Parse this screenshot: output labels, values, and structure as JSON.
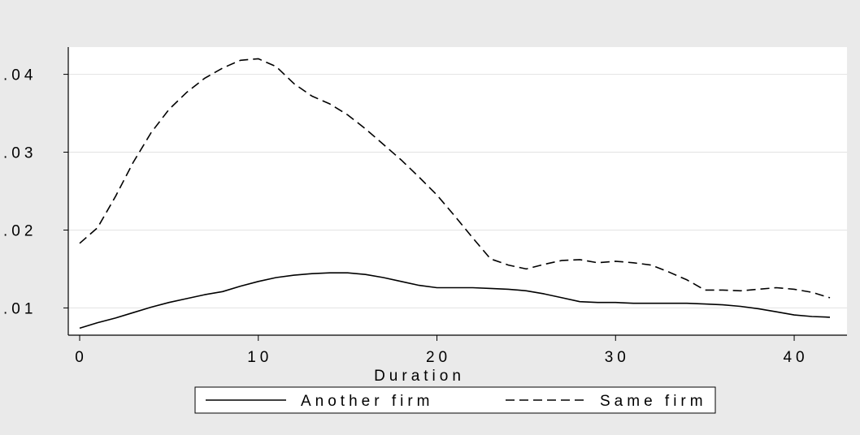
{
  "chart_data": {
    "type": "line",
    "title": "",
    "xlabel": "Duration",
    "ylabel": "",
    "xlim": [
      0,
      42
    ],
    "ylim": [
      0.0065,
      0.0435
    ],
    "x_ticks": [
      0,
      10,
      20,
      30,
      40
    ],
    "x_tick_labels": [
      "0",
      "10",
      "20",
      "30",
      "40"
    ],
    "y_ticks": [
      0.01,
      0.02,
      0.03,
      0.04
    ],
    "y_tick_labels": [
      ".01",
      ".02",
      ".03",
      ".04"
    ],
    "grid": "horizontal",
    "legend_position": "bottom",
    "series": [
      {
        "name": "Another firm",
        "style": "solid",
        "color": "#000000",
        "x": [
          0,
          1,
          2,
          3,
          4,
          5,
          6,
          7,
          8,
          9,
          10,
          11,
          12,
          13,
          14,
          15,
          16,
          17,
          18,
          19,
          20,
          21,
          22,
          23,
          24,
          25,
          26,
          27,
          28,
          29,
          30,
          31,
          32,
          33,
          34,
          35,
          36,
          37,
          38,
          39,
          40,
          41,
          42
        ],
        "values": [
          0.0074,
          0.0081,
          0.0087,
          0.0094,
          0.0101,
          0.0107,
          0.0112,
          0.0117,
          0.0121,
          0.0128,
          0.0134,
          0.0139,
          0.0142,
          0.0144,
          0.0145,
          0.0145,
          0.0143,
          0.0139,
          0.0134,
          0.0129,
          0.0126,
          0.0126,
          0.0126,
          0.0125,
          0.0124,
          0.0122,
          0.0118,
          0.0113,
          0.0108,
          0.0107,
          0.0107,
          0.0106,
          0.0106,
          0.0106,
          0.0106,
          0.0105,
          0.0104,
          0.0102,
          0.0099,
          0.0095,
          0.0091,
          0.0089,
          0.0088
        ]
      },
      {
        "name": "Same firm",
        "style": "dashed",
        "color": "#000000",
        "x": [
          0,
          1,
          2,
          3,
          4,
          5,
          6,
          7,
          8,
          9,
          10,
          11,
          12,
          13,
          14,
          15,
          16,
          17,
          18,
          19,
          20,
          21,
          22,
          23,
          24,
          25,
          26,
          27,
          28,
          29,
          30,
          31,
          32,
          33,
          34,
          35,
          36,
          37,
          38,
          39,
          40,
          41,
          42
        ],
        "values": [
          0.0183,
          0.0203,
          0.0243,
          0.0287,
          0.0325,
          0.0355,
          0.0377,
          0.0395,
          0.0408,
          0.0418,
          0.042,
          0.041,
          0.0388,
          0.0372,
          0.0362,
          0.0348,
          0.033,
          0.031,
          0.029,
          0.0268,
          0.0245,
          0.0218,
          0.019,
          0.0163,
          0.0155,
          0.015,
          0.0156,
          0.0161,
          0.0162,
          0.0158,
          0.016,
          0.0158,
          0.0155,
          0.0146,
          0.0136,
          0.0123,
          0.0123,
          0.0122,
          0.0124,
          0.0126,
          0.0124,
          0.012,
          0.0113
        ]
      }
    ]
  }
}
